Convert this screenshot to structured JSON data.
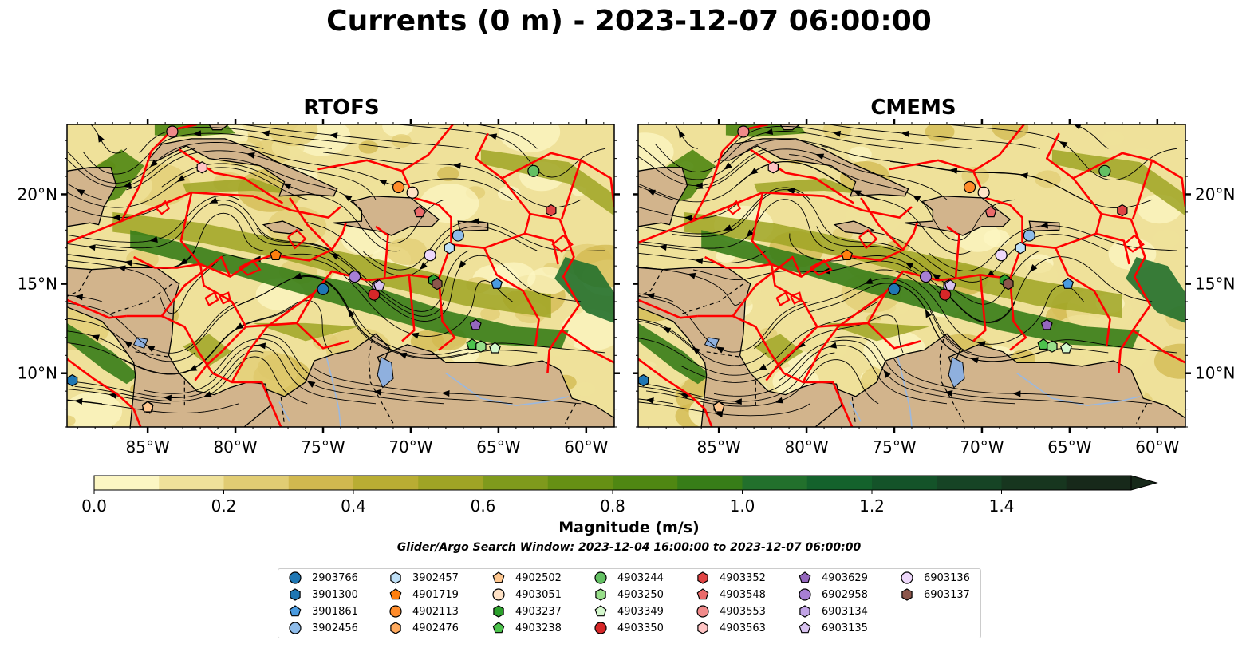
{
  "title": "Currents (0 m) - 2023-12-07 06:00:00",
  "panels": [
    {
      "title": "RTOFS"
    },
    {
      "title": "CMEMS"
    }
  ],
  "colorbar": {
    "label": "Magnitude (m/s)",
    "ticks": [
      "0.0",
      "0.2",
      "0.4",
      "0.6",
      "0.8",
      "1.0",
      "1.2",
      "1.4"
    ],
    "colors": [
      "#fcf6c3",
      "#efe19a",
      "#e1cc73",
      "#d1b84f",
      "#b9ad33",
      "#9fa425",
      "#7f9a1c",
      "#669014",
      "#4f8712",
      "#377d18",
      "#22702c",
      "#14622c",
      "#145329",
      "#164425",
      "#17361f",
      "#17291a"
    ]
  },
  "search_window": "Glider/Argo Search Window: 2023-12-04 16:00:00 to 2023-12-07 06:00:00",
  "map_axes": {
    "lon_ticks": [
      "85°W",
      "80°W",
      "75°W",
      "70°W",
      "65°W",
      "60°W"
    ],
    "lat_ticks": [
      "20°N",
      "15°N",
      "10°N"
    ]
  },
  "chart_data": {
    "type": "map",
    "lon_range": [
      -89.6,
      -58.4
    ],
    "lat_range": [
      7.0,
      23.9
    ],
    "platforms": [
      {
        "id": "2903766",
        "marker": "circle",
        "color": "#1f77b4",
        "lon": -75.0,
        "lat": 14.7
      },
      {
        "id": "3901300",
        "marker": "hexagon",
        "color": "#1f77b4",
        "lon": -89.3,
        "lat": 9.6
      },
      {
        "id": "3901861",
        "marker": "pentagon",
        "color": "#4a9be0",
        "lon": -65.1,
        "lat": 15.0
      },
      {
        "id": "3902456",
        "marker": "circle",
        "color": "#8ebcea",
        "lon": -67.3,
        "lat": 17.7
      },
      {
        "id": "3902457",
        "marker": "hexagon",
        "color": "#bfe0f7",
        "lon": -67.8,
        "lat": 17.0
      },
      {
        "id": "4901719",
        "marker": "pentagon",
        "color": "#ff7f0e",
        "lon": -77.7,
        "lat": 16.6
      },
      {
        "id": "4902113",
        "marker": "circle",
        "color": "#ff8c2b",
        "lon": -70.7,
        "lat": 20.4
      },
      {
        "id": "4902476",
        "marker": "hexagon",
        "color": "#ffaa5e",
        "lon": -85.0,
        "lat": 8.1
      },
      {
        "id": "4902502",
        "marker": "pentagon",
        "color": "#ffc78f",
        "lon": -85.0,
        "lat": 8.1
      },
      {
        "id": "4903051",
        "marker": "circle",
        "color": "#ffe2c6",
        "lon": -69.9,
        "lat": 20.1
      },
      {
        "id": "4903237",
        "marker": "hexagon",
        "color": "#2ca02c",
        "lon": -68.7,
        "lat": 15.2
      },
      {
        "id": "4903238",
        "marker": "pentagon",
        "color": "#4cc34c",
        "lon": -66.5,
        "lat": 11.6
      },
      {
        "id": "4903244",
        "marker": "circle",
        "color": "#63c063",
        "lon": -63.0,
        "lat": 21.3
      },
      {
        "id": "4903250",
        "marker": "hexagon",
        "color": "#98df8a",
        "lon": -66.0,
        "lat": 11.5
      },
      {
        "id": "4903349",
        "marker": "pentagon",
        "color": "#d4f7cc",
        "lon": -65.2,
        "lat": 11.4
      },
      {
        "id": "4903350",
        "marker": "circle",
        "color": "#d62728",
        "lon": -72.1,
        "lat": 14.4
      },
      {
        "id": "4903352",
        "marker": "hexagon",
        "color": "#e04444",
        "lon": -62.0,
        "lat": 19.1
      },
      {
        "id": "4903548",
        "marker": "pentagon",
        "color": "#ea6b6b",
        "lon": -69.5,
        "lat": 19.0
      },
      {
        "id": "4903553",
        "marker": "circle",
        "color": "#f08a8a",
        "lon": -83.6,
        "lat": 23.5
      },
      {
        "id": "4903563",
        "marker": "hexagon",
        "color": "#ffc4c4",
        "lon": -81.9,
        "lat": 21.5
      },
      {
        "id": "4903629",
        "marker": "pentagon",
        "color": "#9467bd",
        "lon": -66.3,
        "lat": 12.7
      },
      {
        "id": "6902958",
        "marker": "circle",
        "color": "#a77fd4",
        "lon": -73.2,
        "lat": 15.4
      },
      {
        "id": "6903134",
        "marker": "hexagon",
        "color": "#c1a3e6",
        "lon": -71.9,
        "lat": 14.9
      },
      {
        "id": "6903135",
        "marker": "pentagon",
        "color": "#d8c2f0",
        "lon": -71.8,
        "lat": 14.9
      },
      {
        "id": "6903136",
        "marker": "circle",
        "color": "#eed8fb",
        "lon": -68.9,
        "lat": 16.6
      },
      {
        "id": "6903137",
        "marker": "hexagon",
        "color": "#8c564b",
        "lon": -68.5,
        "lat": 15.0
      }
    ]
  }
}
